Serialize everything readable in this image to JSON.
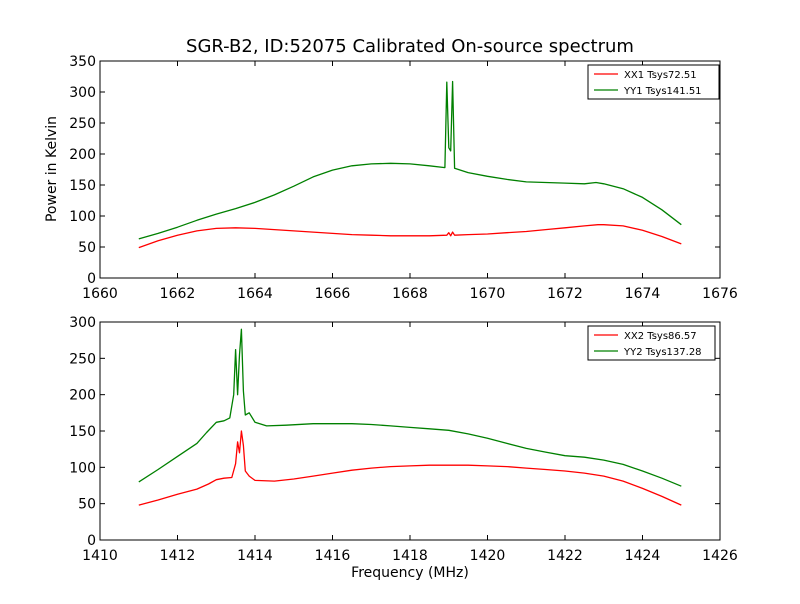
{
  "page": {
    "title": "SGR-B2, ID:52075 Calibrated On-source spectrum"
  },
  "chart_data": [
    {
      "type": "line",
      "title": "SGR-B2, ID:52075 Calibrated On-source spectrum",
      "xlabel": "",
      "ylabel": "Power in Kelvin",
      "xlim": [
        1660,
        1676
      ],
      "ylim": [
        0,
        350
      ],
      "xticks": [
        1660,
        1662,
        1664,
        1666,
        1668,
        1670,
        1672,
        1674,
        1676
      ],
      "yticks": [
        0,
        50,
        100,
        150,
        200,
        250,
        300,
        350
      ],
      "grid": false,
      "legend_position": "top-right",
      "series": [
        {
          "name": "XX1 Tsys72.51",
          "color": "#ff0000",
          "points": [
            [
              1661.0,
              49
            ],
            [
              1661.5,
              60
            ],
            [
              1662.0,
              69
            ],
            [
              1662.5,
              76
            ],
            [
              1663.0,
              80
            ],
            [
              1663.5,
              81
            ],
            [
              1664.0,
              80
            ],
            [
              1664.5,
              78
            ],
            [
              1665.0,
              76
            ],
            [
              1665.5,
              74
            ],
            [
              1666.0,
              72
            ],
            [
              1666.5,
              70
            ],
            [
              1667.0,
              69
            ],
            [
              1667.5,
              68
            ],
            [
              1668.0,
              68
            ],
            [
              1668.5,
              68
            ],
            [
              1668.95,
              69
            ],
            [
              1669.0,
              73
            ],
            [
              1669.05,
              68
            ],
            [
              1669.1,
              74
            ],
            [
              1669.15,
              69
            ],
            [
              1669.5,
              70
            ],
            [
              1670.0,
              71
            ],
            [
              1670.5,
              73
            ],
            [
              1671.0,
              75
            ],
            [
              1671.5,
              78
            ],
            [
              1672.0,
              81
            ],
            [
              1672.5,
              84
            ],
            [
              1672.85,
              86
            ],
            [
              1673.0,
              86
            ],
            [
              1673.5,
              84
            ],
            [
              1674.0,
              77
            ],
            [
              1674.5,
              67
            ],
            [
              1675.0,
              55
            ]
          ]
        },
        {
          "name": "YY1 Tsys141.51",
          "color": "#008000",
          "points": [
            [
              1661.0,
              63
            ],
            [
              1661.5,
              72
            ],
            [
              1662.0,
              82
            ],
            [
              1662.5,
              93
            ],
            [
              1663.0,
              103
            ],
            [
              1663.5,
              112
            ],
            [
              1664.0,
              122
            ],
            [
              1664.5,
              134
            ],
            [
              1665.0,
              148
            ],
            [
              1665.5,
              163
            ],
            [
              1666.0,
              174
            ],
            [
              1666.5,
              181
            ],
            [
              1667.0,
              184
            ],
            [
              1667.5,
              185
            ],
            [
              1668.0,
              184
            ],
            [
              1668.5,
              181
            ],
            [
              1668.9,
              178
            ],
            [
              1668.95,
              316
            ],
            [
              1669.0,
              210
            ],
            [
              1669.05,
              205
            ],
            [
              1669.1,
              317
            ],
            [
              1669.15,
              177
            ],
            [
              1669.5,
              170
            ],
            [
              1670.0,
              164
            ],
            [
              1670.5,
              159
            ],
            [
              1671.0,
              155
            ],
            [
              1671.5,
              154
            ],
            [
              1672.0,
              153
            ],
            [
              1672.5,
              152
            ],
            [
              1672.8,
              154
            ],
            [
              1673.0,
              152
            ],
            [
              1673.5,
              144
            ],
            [
              1674.0,
              130
            ],
            [
              1674.5,
              110
            ],
            [
              1675.0,
              86
            ]
          ]
        }
      ]
    },
    {
      "type": "line",
      "title": "",
      "xlabel": "Frequency (MHz)",
      "ylabel": "",
      "xlim": [
        1410,
        1426
      ],
      "ylim": [
        0,
        300
      ],
      "xticks": [
        1410,
        1412,
        1414,
        1416,
        1418,
        1420,
        1422,
        1424,
        1426
      ],
      "yticks": [
        0,
        50,
        100,
        150,
        200,
        250,
        300
      ],
      "grid": false,
      "legend_position": "top-right",
      "series": [
        {
          "name": "XX2 Tsys86.57",
          "color": "#ff0000",
          "points": [
            [
              1411.0,
              48
            ],
            [
              1411.5,
              55
            ],
            [
              1412.0,
              63
            ],
            [
              1412.5,
              70
            ],
            [
              1412.8,
              77
            ],
            [
              1413.0,
              83
            ],
            [
              1413.2,
              85
            ],
            [
              1413.4,
              86
            ],
            [
              1413.5,
              105
            ],
            [
              1413.55,
              135
            ],
            [
              1413.6,
              120
            ],
            [
              1413.65,
              150
            ],
            [
              1413.7,
              130
            ],
            [
              1413.75,
              95
            ],
            [
              1413.85,
              88
            ],
            [
              1414.0,
              82
            ],
            [
              1414.5,
              81
            ],
            [
              1415.0,
              84
            ],
            [
              1415.5,
              88
            ],
            [
              1416.0,
              92
            ],
            [
              1416.5,
              96
            ],
            [
              1417.0,
              99
            ],
            [
              1417.5,
              101
            ],
            [
              1418.0,
              102
            ],
            [
              1418.5,
              103
            ],
            [
              1419.0,
              103
            ],
            [
              1419.5,
              103
            ],
            [
              1420.0,
              102
            ],
            [
              1420.5,
              101
            ],
            [
              1421.0,
              99
            ],
            [
              1421.5,
              97
            ],
            [
              1422.0,
              95
            ],
            [
              1422.5,
              92
            ],
            [
              1423.0,
              88
            ],
            [
              1423.5,
              81
            ],
            [
              1424.0,
              71
            ],
            [
              1424.5,
              60
            ],
            [
              1425.0,
              48
            ]
          ]
        },
        {
          "name": "YY2 Tsys137.28",
          "color": "#008000",
          "points": [
            [
              1411.0,
              80
            ],
            [
              1411.5,
              97
            ],
            [
              1412.0,
              115
            ],
            [
              1412.5,
              133
            ],
            [
              1412.75,
              148
            ],
            [
              1413.0,
              162
            ],
            [
              1413.2,
              164
            ],
            [
              1413.35,
              168
            ],
            [
              1413.45,
              200
            ],
            [
              1413.5,
              262
            ],
            [
              1413.55,
              200
            ],
            [
              1413.6,
              255
            ],
            [
              1413.65,
              290
            ],
            [
              1413.7,
              205
            ],
            [
              1413.75,
              172
            ],
            [
              1413.85,
              175
            ],
            [
              1414.0,
              162
            ],
            [
              1414.3,
              157
            ],
            [
              1414.8,
              158
            ],
            [
              1415.5,
              160
            ],
            [
              1416.0,
              160
            ],
            [
              1416.5,
              160
            ],
            [
              1417.0,
              159
            ],
            [
              1417.5,
              157
            ],
            [
              1418.0,
              155
            ],
            [
              1418.5,
              153
            ],
            [
              1419.0,
              151
            ],
            [
              1419.5,
              146
            ],
            [
              1420.0,
              140
            ],
            [
              1420.5,
              133
            ],
            [
              1421.0,
              126
            ],
            [
              1421.5,
              121
            ],
            [
              1422.0,
              116
            ],
            [
              1422.5,
              114
            ],
            [
              1423.0,
              110
            ],
            [
              1423.5,
              104
            ],
            [
              1424.0,
              95
            ],
            [
              1424.5,
              85
            ],
            [
              1425.0,
              74
            ]
          ]
        }
      ]
    }
  ]
}
